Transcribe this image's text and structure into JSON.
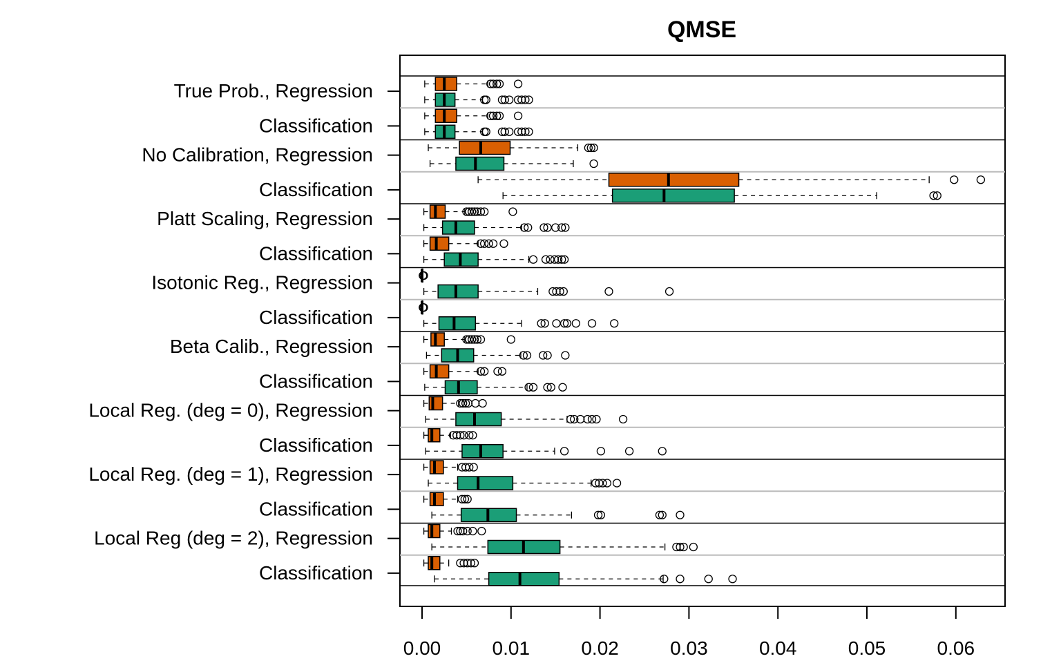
{
  "chart_data": {
    "type": "boxplot",
    "title": "QMSE",
    "xlabel": "",
    "ylabel": "",
    "xlim": [
      0,
      0.0655
    ],
    "x_ticks": [
      "0.00",
      "0.01",
      "0.02",
      "0.03",
      "0.04",
      "0.05",
      "0.06"
    ],
    "x_tick_values": [
      0,
      0.01,
      0.02,
      0.03,
      0.04,
      0.05,
      0.06
    ],
    "colors": {
      "regression": "#d95f02",
      "classification": "#1b9e77"
    },
    "groups": [
      {
        "label": "True Prob., Regression",
        "boxes": [
          {
            "fill": "regression",
            "min": 0.0003,
            "q1": 0.0015,
            "median": 0.0025,
            "q3": 0.0039,
            "max": 0.0074,
            "outliers": [
              0.0077,
              0.008,
              0.0084,
              0.0087,
              0.0108
            ]
          },
          {
            "fill": "classification",
            "min": 0.0003,
            "q1": 0.0015,
            "median": 0.0025,
            "q3": 0.0037,
            "max": 0.0068,
            "outliers": [
              0.007,
              0.0072,
              0.009,
              0.0093,
              0.0098,
              0.0108,
              0.0112,
              0.0116,
              0.012
            ]
          }
        ]
      },
      {
        "label": "Classification",
        "boxes": [
          {
            "fill": "regression",
            "min": 0.0003,
            "q1": 0.0015,
            "median": 0.0025,
            "q3": 0.0039,
            "max": 0.0074,
            "outliers": [
              0.0077,
              0.008,
              0.0084,
              0.0087,
              0.0108
            ]
          },
          {
            "fill": "classification",
            "min": 0.0003,
            "q1": 0.0015,
            "median": 0.0025,
            "q3": 0.0037,
            "max": 0.0068,
            "outliers": [
              0.007,
              0.0072,
              0.009,
              0.0093,
              0.0098,
              0.0108,
              0.0112,
              0.0116,
              0.012
            ]
          }
        ]
      },
      {
        "label": "No Calibration, Regression",
        "boxes": [
          {
            "fill": "regression",
            "min": 0.0007,
            "q1": 0.0042,
            "median": 0.0066,
            "q3": 0.0099,
            "max": 0.0175,
            "outliers": [
              0.0187,
              0.019,
              0.0193
            ]
          },
          {
            "fill": "classification",
            "min": 0.0009,
            "q1": 0.0038,
            "median": 0.006,
            "q3": 0.0092,
            "max": 0.017,
            "outliers": [
              0.0193
            ]
          }
        ]
      },
      {
        "label": "Classification",
        "boxes": [
          {
            "fill": "regression",
            "min": 0.0063,
            "q1": 0.021,
            "median": 0.0277,
            "q3": 0.0356,
            "max": 0.057,
            "outliers": [
              0.0598,
              0.0628
            ]
          },
          {
            "fill": "classification",
            "min": 0.0091,
            "q1": 0.0214,
            "median": 0.0272,
            "q3": 0.0351,
            "max": 0.0511,
            "outliers": [
              0.0575,
              0.0579
            ]
          }
        ]
      },
      {
        "label": "Platt Scaling, Regression",
        "boxes": [
          {
            "fill": "regression",
            "min": 0.0002,
            "q1": 0.0009,
            "median": 0.0015,
            "q3": 0.0026,
            "max": 0.0048,
            "outliers": [
              0.005,
              0.0053,
              0.0056,
              0.0059,
              0.0062,
              0.0066,
              0.007,
              0.0102
            ]
          },
          {
            "fill": "classification",
            "min": 0.0002,
            "q1": 0.0023,
            "median": 0.0038,
            "q3": 0.0059,
            "max": 0.0112,
            "outliers": [
              0.0115,
              0.0119,
              0.0137,
              0.0141,
              0.015,
              0.0157,
              0.0161
            ]
          }
        ]
      },
      {
        "label": "Classification",
        "boxes": [
          {
            "fill": "regression",
            "min": 0.0002,
            "q1": 0.0009,
            "median": 0.0016,
            "q3": 0.003,
            "max": 0.0063,
            "outliers": [
              0.0066,
              0.007,
              0.0075,
              0.008,
              0.0092
            ]
          },
          {
            "fill": "classification",
            "min": 0.0002,
            "q1": 0.0025,
            "median": 0.0043,
            "q3": 0.0063,
            "max": 0.012,
            "outliers": [
              0.0125,
              0.0139,
              0.0144,
              0.0149,
              0.0153,
              0.0157,
              0.016
            ]
          }
        ]
      },
      {
        "label": "Isotonic Reg., Regression",
        "boxes": [
          {
            "fill": "regression",
            "min": 0.0,
            "q1": 0.0,
            "median": 0.0,
            "q3": 0.0,
            "max": 0.0,
            "outliers": [
              0.0001,
              0.0002
            ]
          },
          {
            "fill": "classification",
            "min": 0.0002,
            "q1": 0.0018,
            "median": 0.0038,
            "q3": 0.0063,
            "max": 0.013,
            "outliers": [
              0.0147,
              0.0151,
              0.0155,
              0.0159,
              0.021,
              0.0278
            ]
          }
        ]
      },
      {
        "label": "Classification",
        "boxes": [
          {
            "fill": "regression",
            "min": 0.0,
            "q1": 0.0,
            "median": 0.0,
            "q3": 0.0,
            "max": 0.0,
            "outliers": [
              0.0001,
              0.0002
            ]
          },
          {
            "fill": "classification",
            "min": 0.0002,
            "q1": 0.0019,
            "median": 0.0036,
            "q3": 0.006,
            "max": 0.0112,
            "outliers": [
              0.0134,
              0.0138,
              0.0151,
              0.016,
              0.0163,
              0.0173,
              0.0191,
              0.0216
            ]
          }
        ]
      },
      {
        "label": "Beta Calib., Regression",
        "boxes": [
          {
            "fill": "regression",
            "min": 0.0002,
            "q1": 0.001,
            "median": 0.0015,
            "q3": 0.0025,
            "max": 0.0048,
            "outliers": [
              0.005,
              0.0053,
              0.0056,
              0.0059,
              0.0062,
              0.0066,
              0.01
            ]
          },
          {
            "fill": "classification",
            "min": 0.0005,
            "q1": 0.0022,
            "median": 0.004,
            "q3": 0.0058,
            "max": 0.0111,
            "outliers": [
              0.0114,
              0.0118,
              0.0136,
              0.0141,
              0.0161
            ]
          }
        ]
      },
      {
        "label": "Classification",
        "boxes": [
          {
            "fill": "regression",
            "min": 0.0002,
            "q1": 0.0009,
            "median": 0.0016,
            "q3": 0.003,
            "max": 0.0063,
            "outliers": [
              0.0066,
              0.007,
              0.0085,
              0.009
            ]
          },
          {
            "fill": "classification",
            "min": 0.0003,
            "q1": 0.0026,
            "median": 0.0041,
            "q3": 0.0062,
            "max": 0.0118,
            "outliers": [
              0.012,
              0.0125,
              0.0141,
              0.0145,
              0.0158
            ]
          }
        ]
      },
      {
        "label": "Local Reg. (deg = 0), Regression",
        "boxes": [
          {
            "fill": "regression",
            "min": 0.0002,
            "q1": 0.0008,
            "median": 0.0012,
            "q3": 0.0023,
            "max": 0.0041,
            "outliers": [
              0.0043,
              0.0046,
              0.0049,
              0.0052,
              0.006,
              0.0068
            ]
          },
          {
            "fill": "classification",
            "min": 0.0004,
            "q1": 0.0038,
            "median": 0.0059,
            "q3": 0.0089,
            "max": 0.0163,
            "outliers": [
              0.0167,
              0.0171,
              0.0178,
              0.0186,
              0.0191,
              0.0196,
              0.0226
            ]
          }
        ]
      },
      {
        "label": "Classification",
        "boxes": [
          {
            "fill": "regression",
            "min": 0.0002,
            "q1": 0.0007,
            "median": 0.0011,
            "q3": 0.002,
            "max": 0.0032,
            "outliers": [
              0.0035,
              0.0039,
              0.0043,
              0.0047,
              0.0053,
              0.0057
            ]
          },
          {
            "fill": "classification",
            "min": 0.0004,
            "q1": 0.0045,
            "median": 0.0066,
            "q3": 0.0091,
            "max": 0.0149,
            "outliers": [
              0.016,
              0.0201,
              0.0233,
              0.027
            ]
          }
        ]
      },
      {
        "label": "Local Reg. (deg = 1), Regression",
        "boxes": [
          {
            "fill": "regression",
            "min": 0.0002,
            "q1": 0.0009,
            "median": 0.0014,
            "q3": 0.0024,
            "max": 0.004,
            "outliers": [
              0.0045,
              0.0049,
              0.0053,
              0.0058
            ]
          },
          {
            "fill": "classification",
            "min": 0.0007,
            "q1": 0.004,
            "median": 0.0063,
            "q3": 0.0102,
            "max": 0.019,
            "outliers": [
              0.0195,
              0.0199,
              0.0203,
              0.0208,
              0.0219
            ]
          }
        ]
      },
      {
        "label": "Classification",
        "boxes": [
          {
            "fill": "regression",
            "min": 0.0002,
            "q1": 0.0009,
            "median": 0.0014,
            "q3": 0.0024,
            "max": 0.004,
            "outliers": [
              0.0045,
              0.0048,
              0.0051
            ]
          },
          {
            "fill": "classification",
            "min": 0.0011,
            "q1": 0.0044,
            "median": 0.0074,
            "q3": 0.0106,
            "max": 0.0168,
            "outliers": [
              0.0198,
              0.0201,
              0.0267,
              0.027,
              0.029
            ]
          }
        ]
      },
      {
        "label": "Local Reg (deg = 2), Regression",
        "boxes": [
          {
            "fill": "regression",
            "min": 0.0002,
            "q1": 0.0007,
            "median": 0.0011,
            "q3": 0.002,
            "max": 0.0033,
            "outliers": [
              0.004,
              0.0043,
              0.0046,
              0.0051,
              0.0057,
              0.0067
            ]
          },
          {
            "fill": "classification",
            "min": 0.0011,
            "q1": 0.0074,
            "median": 0.0114,
            "q3": 0.0155,
            "max": 0.0273,
            "outliers": [
              0.0286,
              0.029,
              0.0294,
              0.0305
            ]
          }
        ]
      },
      {
        "label": "Classification",
        "boxes": [
          {
            "fill": "regression",
            "min": 0.0002,
            "q1": 0.0007,
            "median": 0.0011,
            "q3": 0.002,
            "max": 0.003,
            "outliers": [
              0.0043,
              0.0047,
              0.0051,
              0.0055,
              0.0059
            ]
          },
          {
            "fill": "classification",
            "min": 0.0014,
            "q1": 0.0075,
            "median": 0.011,
            "q3": 0.0154,
            "max": 0.0271,
            "outliers": [
              0.0272,
              0.029,
              0.0322,
              0.0349
            ]
          }
        ]
      }
    ]
  }
}
